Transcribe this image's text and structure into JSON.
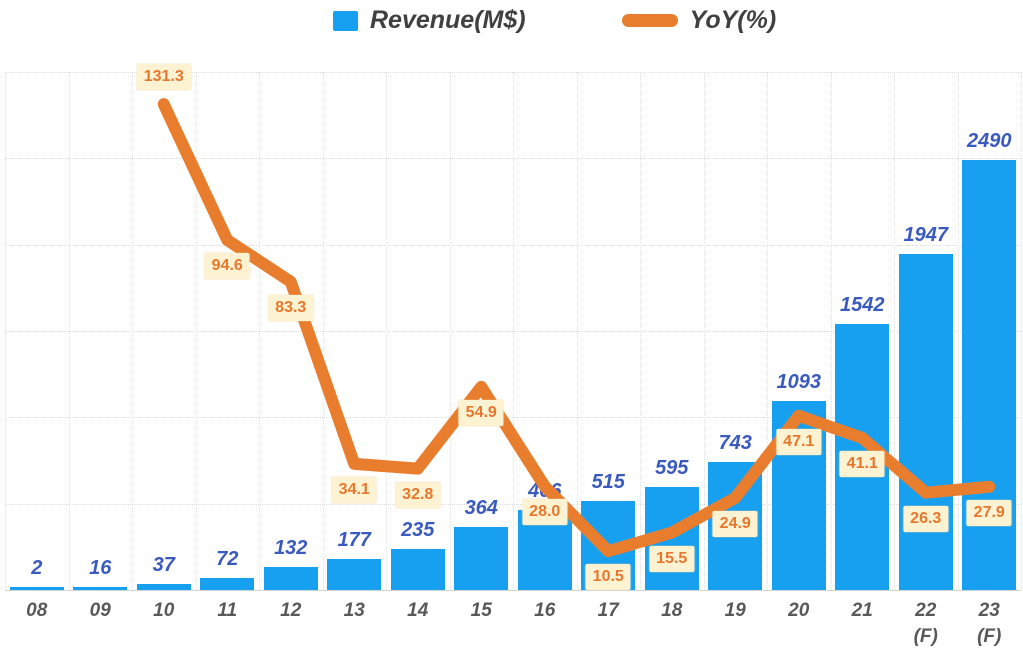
{
  "legend": {
    "items": [
      {
        "label": "Revenue(M$)",
        "swatch": "square",
        "color": "#18a0f0"
      },
      {
        "label": "YoY(%)",
        "swatch": "line",
        "color": "#e87d2e"
      }
    ]
  },
  "chart_data": {
    "type": "bar",
    "title": "",
    "xlabel": "",
    "ylabel": "",
    "legend_position": "top",
    "grid": true,
    "categories": [
      {
        "label": "08",
        "note": ""
      },
      {
        "label": "09",
        "note": ""
      },
      {
        "label": "10",
        "note": ""
      },
      {
        "label": "11",
        "note": ""
      },
      {
        "label": "12",
        "note": ""
      },
      {
        "label": "13",
        "note": ""
      },
      {
        "label": "14",
        "note": ""
      },
      {
        "label": "15",
        "note": ""
      },
      {
        "label": "16",
        "note": ""
      },
      {
        "label": "17",
        "note": ""
      },
      {
        "label": "18",
        "note": ""
      },
      {
        "label": "19",
        "note": ""
      },
      {
        "label": "20",
        "note": ""
      },
      {
        "label": "21",
        "note": ""
      },
      {
        "label": "22",
        "note": "(F)"
      },
      {
        "label": "23",
        "note": "(F)"
      }
    ],
    "series": [
      {
        "name": "Revenue(M$)",
        "type": "bar",
        "axis": "left",
        "color": "#18a0f0",
        "label_color": "#3a5abf",
        "values": [
          2,
          16,
          37,
          72,
          132,
          177,
          235,
          364,
          466,
          515,
          595,
          743,
          1093,
          1542,
          1947,
          2490
        ],
        "value_labels": [
          "2",
          "16",
          "37",
          "72",
          "132",
          "177",
          "235",
          "364",
          "466",
          "515",
          "595",
          "743",
          "1093",
          "1542",
          "1947",
          "2490"
        ]
      },
      {
        "name": "YoY(%)",
        "type": "line",
        "axis": "right",
        "color": "#e87d2e",
        "label_color": "#e8762d",
        "label_bg": "#fdf3d2",
        "values": [
          null,
          null,
          131.3,
          94.6,
          83.3,
          34.1,
          32.8,
          54.9,
          28.0,
          10.5,
          15.5,
          24.9,
          47.1,
          41.1,
          26.3,
          27.9
        ],
        "value_labels": [
          null,
          null,
          "131.3",
          "94.6",
          "83.3",
          "34.1",
          "32.8",
          "54.9",
          "28.0",
          "10.5",
          "15.5",
          "24.9",
          "47.1",
          "41.1",
          "26.3",
          "27.9"
        ]
      }
    ],
    "left_axis": {
      "min": 0,
      "max": 3000,
      "step": 500,
      "labels_visible": false
    },
    "right_axis": {
      "min": 0,
      "max": 140,
      "labels_visible": false
    }
  }
}
